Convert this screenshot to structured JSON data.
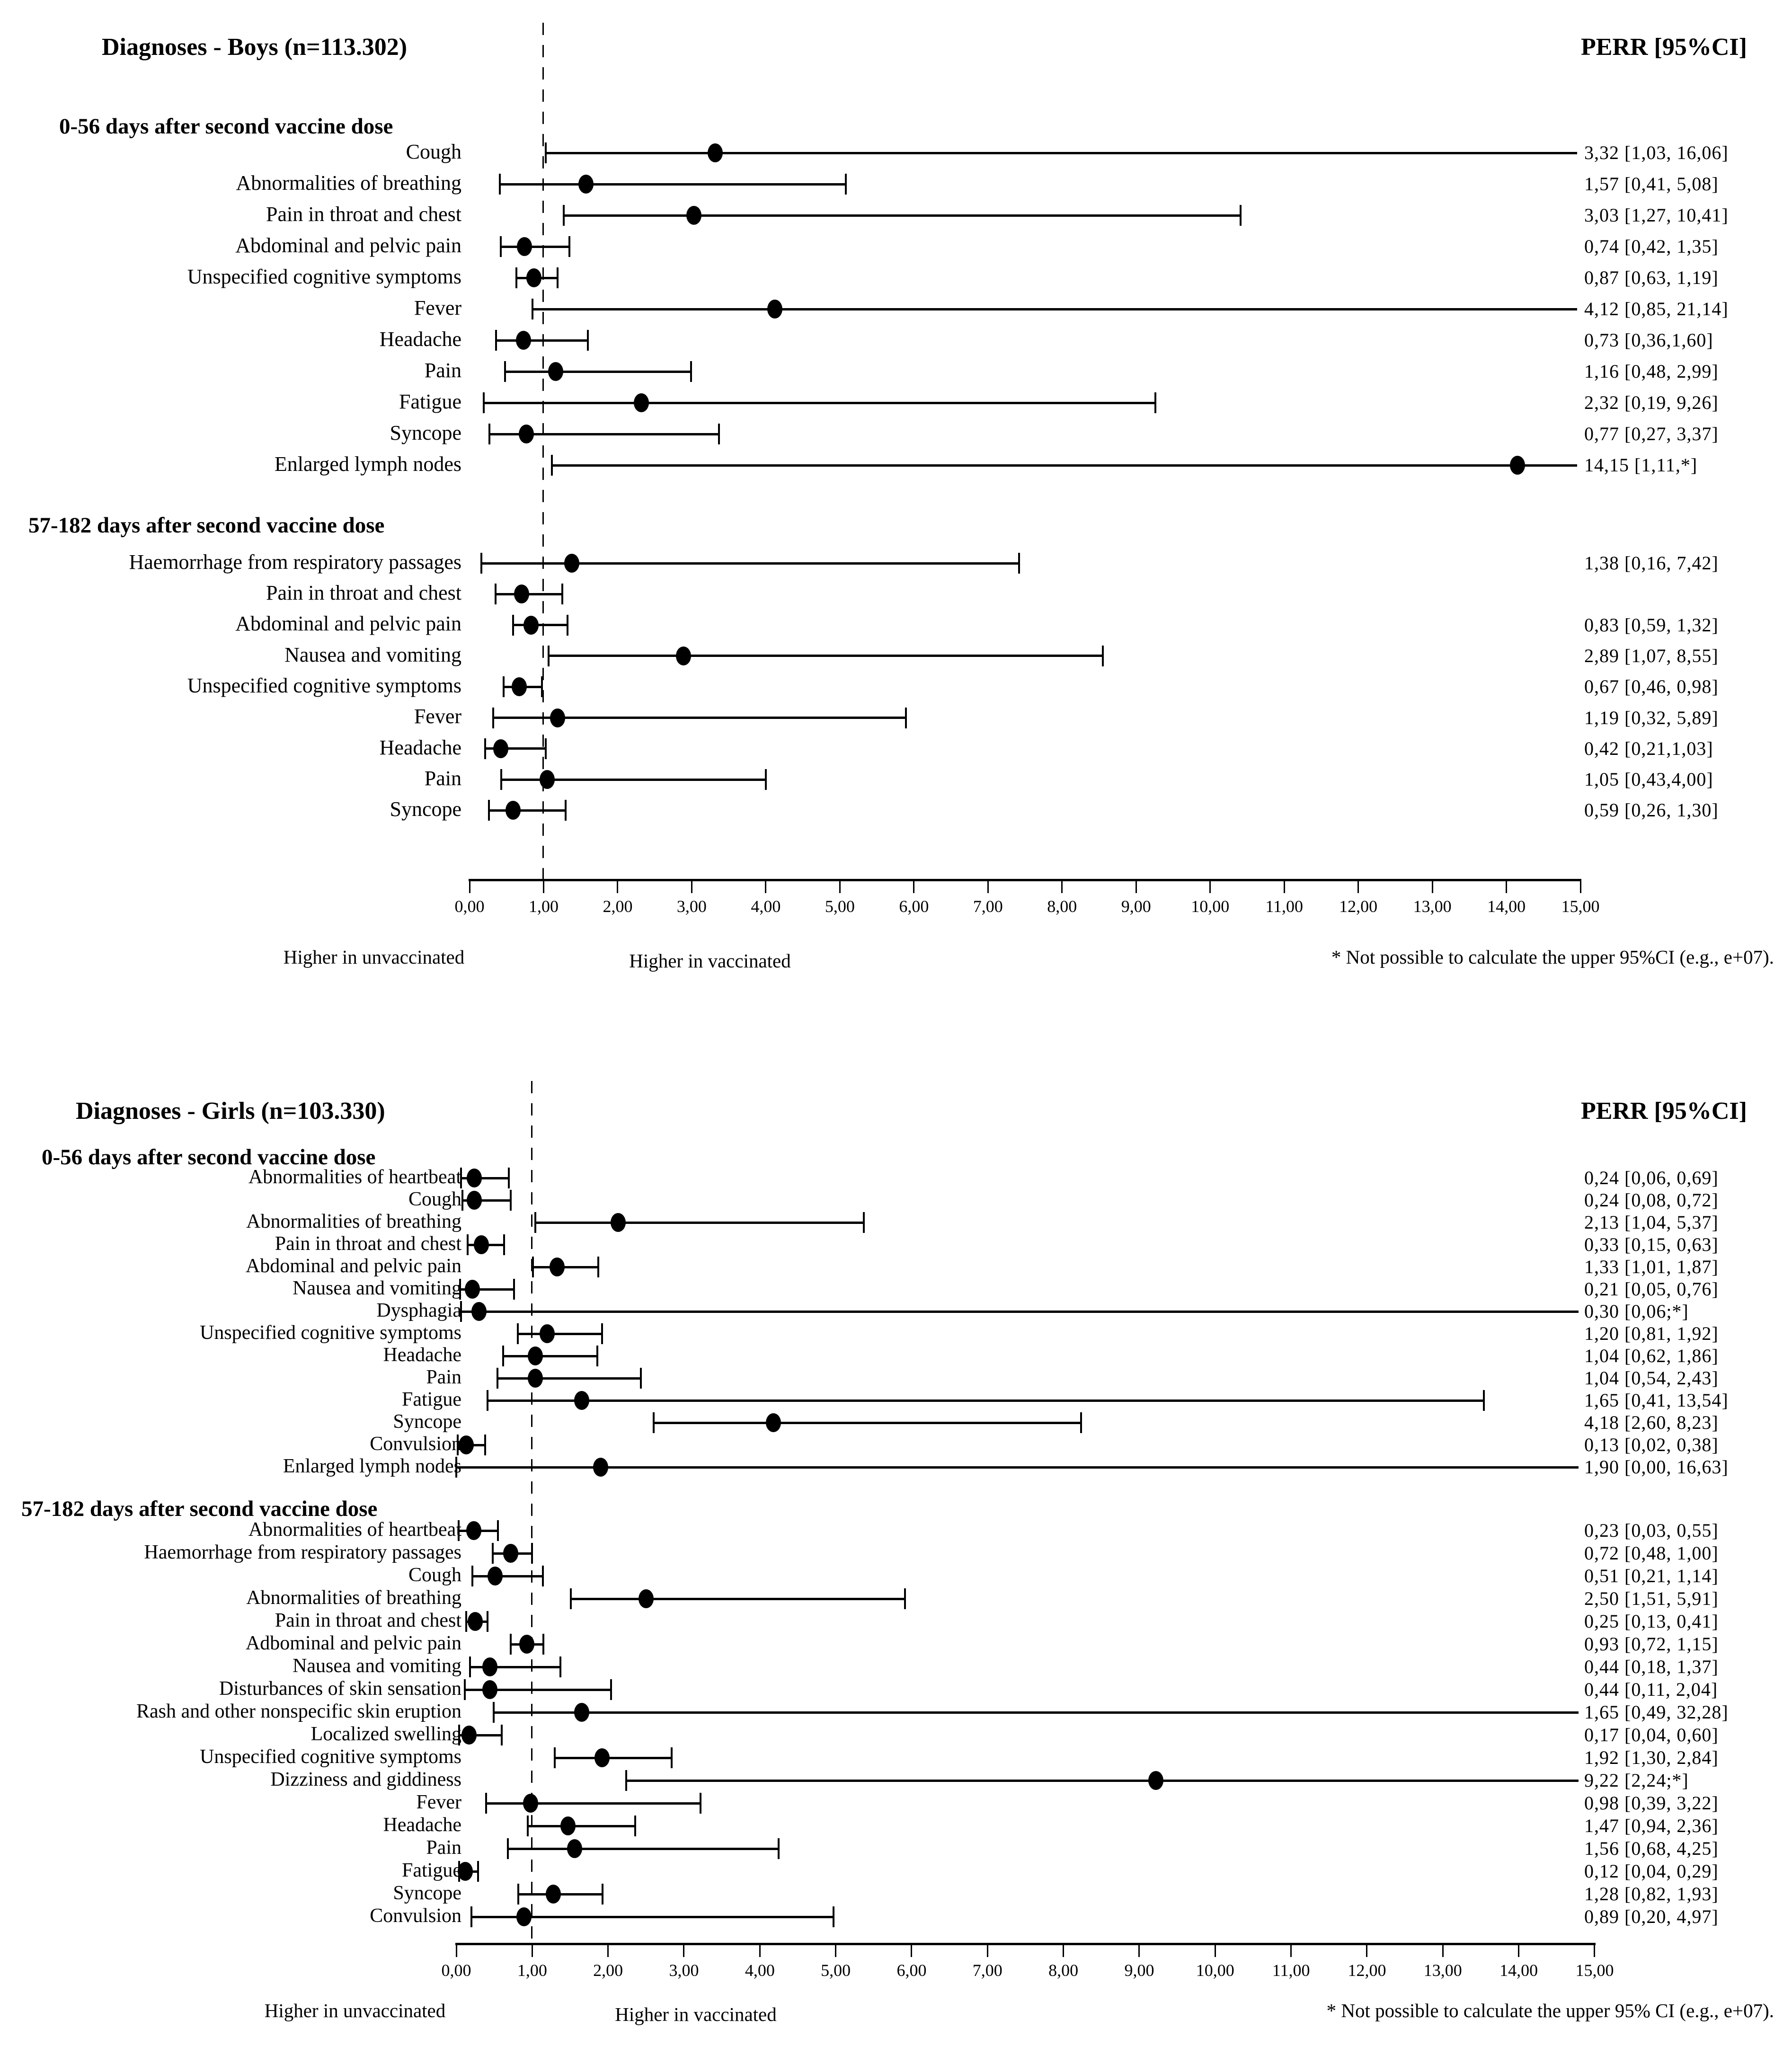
{
  "chart_data": [
    {
      "type": "scatter",
      "variant": "forest-plot",
      "title": "Diagnoses - Boys (n=113.302)",
      "right_column_header": "PERR [95%CI]",
      "xlim": [
        0,
        15
      ],
      "reference_line_x": 1.0,
      "grid": false,
      "x_ticks": [
        "0,00",
        "1,00",
        "2,00",
        "3,00",
        "4,00",
        "5,00",
        "6,00",
        "7,00",
        "8,00",
        "9,00",
        "10,00",
        "11,00",
        "12,00",
        "13,00",
        "14,00",
        "15,00"
      ],
      "captions": {
        "left_label": "Higher in unvaccinated",
        "right_label": "Higher in vaccinated",
        "note": "* Not possible to calculate the upper 95%CI (e.g., e+07)."
      },
      "sections": [
        {
          "header": "0-56 days after second vaccine dose",
          "rows": [
            {
              "label": "Cough",
              "perr_text": "3,32 [1,03, 16,06]",
              "est": 3.32,
              "lo": 1.03,
              "hi": 16.06
            },
            {
              "label": "Abnormalities of breathing",
              "perr_text": "1,57 [0,41, 5,08]",
              "est": 1.57,
              "lo": 0.41,
              "hi": 5.08
            },
            {
              "label": "Pain in throat and chest",
              "perr_text": "3,03 [1,27, 10,41]",
              "est": 3.03,
              "lo": 1.27,
              "hi": 10.41
            },
            {
              "label": "Abdominal and pelvic pain",
              "perr_text": "0,74 [0,42, 1,35]",
              "est": 0.74,
              "lo": 0.42,
              "hi": 1.35
            },
            {
              "label": "Unspecified cognitive symptoms",
              "perr_text": "0,87 [0,63, 1,19]",
              "est": 0.87,
              "lo": 0.63,
              "hi": 1.19
            },
            {
              "label": "Fever",
              "perr_text": "4,12 [0,85, 21,14]",
              "est": 4.12,
              "lo": 0.85,
              "hi": 21.14
            },
            {
              "label": "Headache",
              "perr_text": "0,73 [0,36,1,60]",
              "est": 0.73,
              "lo": 0.36,
              "hi": 1.6
            },
            {
              "label": "Pain",
              "perr_text": "1,16 [0,48, 2,99]",
              "est": 1.16,
              "lo": 0.48,
              "hi": 2.99
            },
            {
              "label": "Fatigue",
              "perr_text": "2,32 [0,19, 9,26]",
              "est": 2.32,
              "lo": 0.19,
              "hi": 9.26
            },
            {
              "label": "Syncope",
              "perr_text": "0,77 [0,27, 3,37]",
              "est": 0.77,
              "lo": 0.27,
              "hi": 3.37
            },
            {
              "label": "Enlarged lymph nodes",
              "perr_text": "14,15 [1,11,*]",
              "est": 14.15,
              "lo": 1.11,
              "hi": null,
              "upper_censored": true
            }
          ]
        },
        {
          "header": "57-182 days after second vaccine dose",
          "rows": [
            {
              "label": "Haemorrhage from respiratory passages",
              "perr_text": "1,38 [0,16, 7,42]",
              "est": 1.38,
              "lo": 0.16,
              "hi": 7.42
            },
            {
              "label": "Pain in throat and chest",
              "perr_text": "",
              "est": 0.7,
              "lo": 0.35,
              "hi": 1.25
            },
            {
              "label": "Abdominal and pelvic pain",
              "perr_text": "0,83 [0,59, 1,32]",
              "est": 0.83,
              "lo": 0.59,
              "hi": 1.32
            },
            {
              "label": "Nausea and vomiting",
              "perr_text": "2,89 [1,07, 8,55]",
              "est": 2.89,
              "lo": 1.07,
              "hi": 8.55
            },
            {
              "label": "Unspecified cognitive symptoms",
              "perr_text": "0,67 [0,46, 0,98]",
              "est": 0.67,
              "lo": 0.46,
              "hi": 0.98
            },
            {
              "label": "Fever",
              "perr_text": "1,19 [0,32, 5,89]",
              "est": 1.19,
              "lo": 0.32,
              "hi": 5.89
            },
            {
              "label": "Headache",
              "perr_text": "0,42 [0,21,1,03]",
              "est": 0.42,
              "lo": 0.21,
              "hi": 1.03
            },
            {
              "label": "Pain",
              "perr_text": "1,05 [0,43,4,00]",
              "est": 1.05,
              "lo": 0.43,
              "hi": 4.0
            },
            {
              "label": "Syncope",
              "perr_text": "0,59 [0,26, 1,30]",
              "est": 0.59,
              "lo": 0.26,
              "hi": 1.3
            }
          ]
        }
      ]
    },
    {
      "type": "scatter",
      "variant": "forest-plot",
      "title": "Diagnoses - Girls (n=103.330)",
      "right_column_header": "PERR [95%CI]",
      "xlim": [
        0,
        15
      ],
      "reference_line_x": 1.0,
      "grid": false,
      "x_ticks": [
        "0,00",
        "1,00",
        "2,00",
        "3,00",
        "4,00",
        "5,00",
        "6,00",
        "7,00",
        "8,00",
        "9,00",
        "10,00",
        "11,00",
        "12,00",
        "13,00",
        "14,00",
        "15,00"
      ],
      "captions": {
        "left_label": "Higher in unvaccinated",
        "right_label": "Higher in vaccinated",
        "note": "* Not possible to calculate the upper 95% CI (e.g., e+07)."
      },
      "sections": [
        {
          "header": "0-56 days after second vaccine dose",
          "rows": [
            {
              "label": "Abnormalities of heartbeat",
              "perr_text": "0,24 [0,06, 0,69]",
              "est": 0.24,
              "lo": 0.06,
              "hi": 0.69
            },
            {
              "label": "Cough",
              "perr_text": "0,24 [0,08, 0,72]",
              "est": 0.24,
              "lo": 0.08,
              "hi": 0.72
            },
            {
              "label": "Abnormalities of breathing",
              "perr_text": "2,13 [1,04, 5,37]",
              "est": 2.13,
              "lo": 1.04,
              "hi": 5.37
            },
            {
              "label": "Pain in throat and chest",
              "perr_text": "0,33 [0,15, 0,63]",
              "est": 0.33,
              "lo": 0.15,
              "hi": 0.63
            },
            {
              "label": "Abdominal and pelvic pain",
              "perr_text": "1,33 [1,01, 1,87]",
              "est": 1.33,
              "lo": 1.01,
              "hi": 1.87
            },
            {
              "label": "Nausea and vomiting",
              "perr_text": "0,21 [0,05, 0,76]",
              "est": 0.21,
              "lo": 0.05,
              "hi": 0.76
            },
            {
              "label": "Dysphagia",
              "perr_text": "0,30 [0,06;*]",
              "est": 0.3,
              "lo": 0.06,
              "hi": null,
              "upper_censored": true
            },
            {
              "label": "Unspecified cognitive symptoms",
              "perr_text": "1,20 [0,81, 1,92]",
              "est": 1.2,
              "lo": 0.81,
              "hi": 1.92
            },
            {
              "label": "Headache",
              "perr_text": "1,04 [0,62, 1,86]",
              "est": 1.04,
              "lo": 0.62,
              "hi": 1.86
            },
            {
              "label": "Pain",
              "perr_text": "1,04 [0,54, 2,43]",
              "est": 1.04,
              "lo": 0.54,
              "hi": 2.43
            },
            {
              "label": "Fatigue",
              "perr_text": "1,65 [0,41, 13,54]",
              "est": 1.65,
              "lo": 0.41,
              "hi": 13.54
            },
            {
              "label": "Syncope",
              "perr_text": "4,18 [2,60, 8,23]",
              "est": 4.18,
              "lo": 2.6,
              "hi": 8.23
            },
            {
              "label": "Convulsion",
              "perr_text": "0,13 [0,02, 0,38]",
              "est": 0.13,
              "lo": 0.02,
              "hi": 0.38
            },
            {
              "label": "Enlarged lymph nodes",
              "perr_text": "1,90 [0,00, 16,63]",
              "est": 1.9,
              "lo": 0.0,
              "hi": 16.63
            }
          ]
        },
        {
          "header": "57-182 days after second vaccine dose",
          "rows": [
            {
              "label": "Abnormalities of heartbeat",
              "perr_text": "0,23 [0,03, 0,55]",
              "est": 0.23,
              "lo": 0.03,
              "hi": 0.55
            },
            {
              "label": "Haemorrhage from respiratory passages",
              "perr_text": "0,72 [0,48, 1,00]",
              "est": 0.72,
              "lo": 0.48,
              "hi": 1.0
            },
            {
              "label": "Cough",
              "perr_text": "0,51 [0,21, 1,14]",
              "est": 0.51,
              "lo": 0.21,
              "hi": 1.14
            },
            {
              "label": "Abnormalities of breathing",
              "perr_text": "2,50 [1,51, 5,91]",
              "est": 2.5,
              "lo": 1.51,
              "hi": 5.91
            },
            {
              "label": "Pain in throat and chest",
              "perr_text": "0,25 [0,13, 0,41]",
              "est": 0.25,
              "lo": 0.13,
              "hi": 0.41
            },
            {
              "label": "Adbominal and pelvic pain",
              "perr_text": "0,93 [0,72, 1,15]",
              "est": 0.93,
              "lo": 0.72,
              "hi": 1.15
            },
            {
              "label": "Nausea and vomiting",
              "perr_text": "0,44 [0,18, 1,37]",
              "est": 0.44,
              "lo": 0.18,
              "hi": 1.37
            },
            {
              "label": "Disturbances of skin sensation",
              "perr_text": "0,44 [0,11, 2,04]",
              "est": 0.44,
              "lo": 0.11,
              "hi": 2.04
            },
            {
              "label": "Rash and other nonspecific skin eruption",
              "perr_text": "1,65 [0,49, 32,28]",
              "est": 1.65,
              "lo": 0.49,
              "hi": 32.28
            },
            {
              "label": "Localized swelling",
              "perr_text": "0,17 [0,04, 0,60]",
              "est": 0.17,
              "lo": 0.04,
              "hi": 0.6
            },
            {
              "label": "Unspecified cognitive symptoms",
              "perr_text": "1,92 [1,30, 2,84]",
              "est": 1.92,
              "lo": 1.3,
              "hi": 2.84
            },
            {
              "label": "Dizziness and giddiness",
              "perr_text": "9,22 [2,24;*]",
              "est": 9.22,
              "lo": 2.24,
              "hi": null,
              "upper_censored": true
            },
            {
              "label": "Fever",
              "perr_text": "0,98 [0,39, 3,22]",
              "est": 0.98,
              "lo": 0.39,
              "hi": 3.22
            },
            {
              "label": "Headache",
              "perr_text": "1,47 [0,94, 2,36]",
              "est": 1.47,
              "lo": 0.94,
              "hi": 2.36
            },
            {
              "label": "Pain",
              "perr_text": "1,56 [0,68, 4,25]",
              "est": 1.56,
              "lo": 0.68,
              "hi": 4.25
            },
            {
              "label": "Fatigue",
              "perr_text": "0,12 [0,04, 0,29]",
              "est": 0.12,
              "lo": 0.04,
              "hi": 0.29
            },
            {
              "label": "Syncope",
              "perr_text": "1,28 [0,82, 1,93]",
              "est": 1.28,
              "lo": 0.82,
              "hi": 1.93
            },
            {
              "label": "Convulsion",
              "perr_text": "0,89 [0,20, 4,97]",
              "est": 0.89,
              "lo": 0.2,
              "hi": 4.97
            }
          ]
        }
      ]
    }
  ]
}
